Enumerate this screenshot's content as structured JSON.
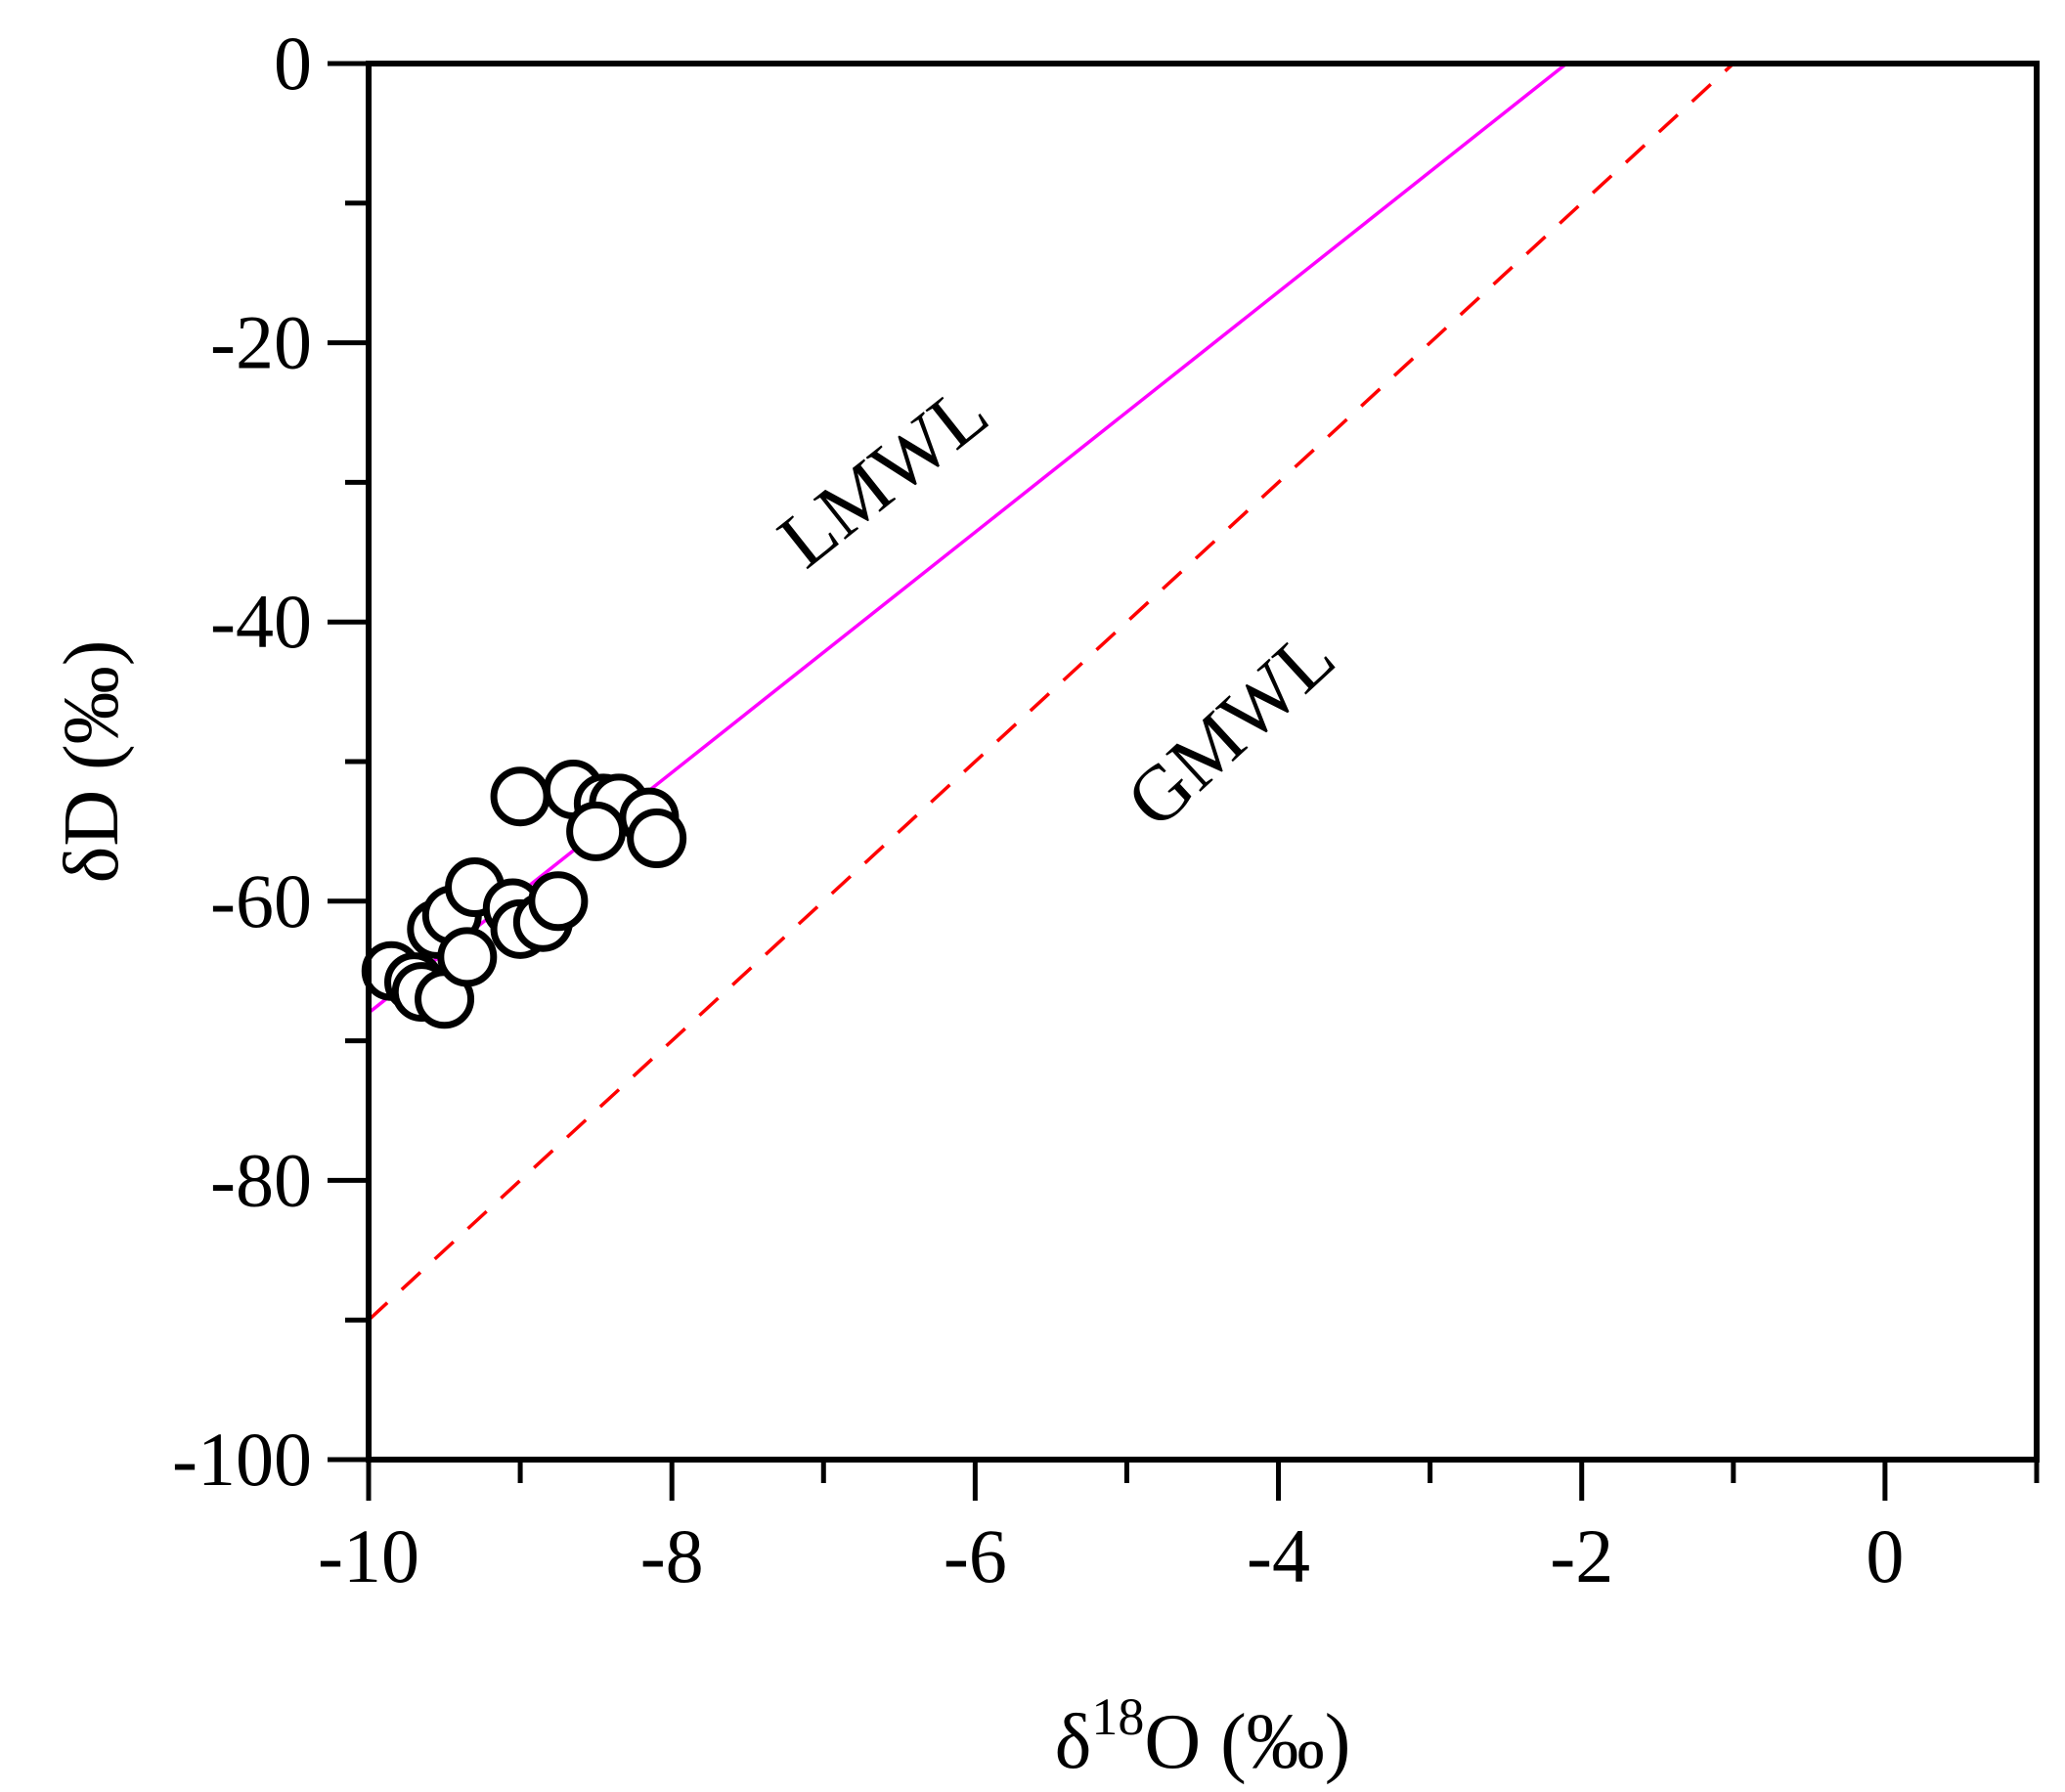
{
  "chart_data": {
    "type": "scatter",
    "title": "",
    "xlabel": {
      "prefix": "δ",
      "superscript": "18",
      "suffix": "O (‰)"
    },
    "ylabel": "δD (‰)",
    "xlim": [
      -10,
      1
    ],
    "ylim": [
      -100,
      0
    ],
    "x_ticks": [
      -10,
      -8,
      -6,
      -4,
      -2,
      0
    ],
    "x_tick_labels": [
      "-10",
      "-8",
      "-6",
      "-4",
      "-2",
      "0"
    ],
    "x_minor_ticks": [
      -9,
      -7,
      -5,
      -3,
      -1,
      1
    ],
    "y_ticks": [
      -100,
      -80,
      -60,
      -40,
      -20,
      0
    ],
    "y_tick_labels": [
      "-100",
      "-80",
      "-60",
      "-40",
      "-20",
      "0"
    ],
    "y_minor_ticks": [
      -90,
      -70,
      -50,
      -30,
      -10
    ],
    "grid": false,
    "lines": [
      {
        "label": "LMWL",
        "color": "#ff00ff",
        "style": "solid",
        "x": [
          -10,
          -2.1
        ],
        "y": [
          -68,
          0
        ]
      },
      {
        "label": "GMWL",
        "color": "#ff0000",
        "style": "dashed",
        "x": [
          -10,
          0
        ],
        "y": [
          -90,
          10
        ]
      }
    ],
    "series": [
      {
        "marker": "open-circle",
        "points": [
          {
            "x": -9.85,
            "y": -65.0
          },
          {
            "x": -9.7,
            "y": -65.8
          },
          {
            "x": -9.65,
            "y": -66.5
          },
          {
            "x": -9.5,
            "y": -67.0
          },
          {
            "x": -9.55,
            "y": -62.0
          },
          {
            "x": -9.45,
            "y": -61.0
          },
          {
            "x": -9.35,
            "y": -64.0
          },
          {
            "x": -9.3,
            "y": -59.0
          },
          {
            "x": -9.05,
            "y": -60.5
          },
          {
            "x": -9.0,
            "y": -62.0
          },
          {
            "x": -8.85,
            "y": -61.5
          },
          {
            "x": -8.75,
            "y": -60.0
          },
          {
            "x": -9.0,
            "y": -52.5
          },
          {
            "x": -8.65,
            "y": -52.0
          },
          {
            "x": -8.45,
            "y": -53.0
          },
          {
            "x": -8.35,
            "y": -53.0
          },
          {
            "x": -8.5,
            "y": -55.0
          },
          {
            "x": -8.15,
            "y": -54.0
          },
          {
            "x": -8.1,
            "y": -55.5
          }
        ]
      }
    ]
  }
}
